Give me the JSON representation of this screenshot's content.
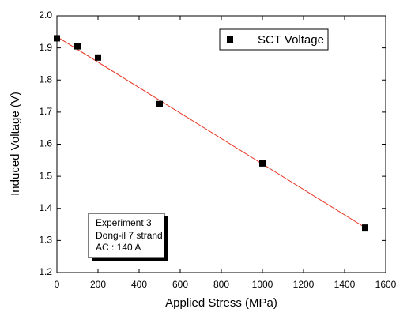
{
  "chart_data": {
    "type": "scatter",
    "x_label": "Applied Stress (MPa)",
    "y_label": "Induced Voltage (V)",
    "series": [
      {
        "name": "SCT Voltage",
        "color": "#000000",
        "x": [
          0,
          100,
          200,
          500,
          1000,
          1500
        ],
        "values": [
          1.93,
          1.905,
          1.87,
          1.725,
          1.54,
          1.34
        ]
      }
    ],
    "fit_line": {
      "color": "#e8311f",
      "x": [
        0,
        1500
      ],
      "values": [
        1.935,
        1.34
      ]
    },
    "xlim": [
      0,
      1600
    ],
    "xticks": [
      0,
      200,
      400,
      600,
      800,
      1000,
      1200,
      1400,
      1600
    ],
    "ylim": [
      1.2,
      2.0
    ],
    "yticks": [
      1.2,
      1.3,
      1.4,
      1.5,
      1.6,
      1.7,
      1.8,
      1.9,
      {
        "value": 2.0,
        "label": "2.0"
      }
    ],
    "annotation": [
      "Experiment 3",
      "Dong-il 7 strand",
      "AC : 140 A"
    ]
  }
}
